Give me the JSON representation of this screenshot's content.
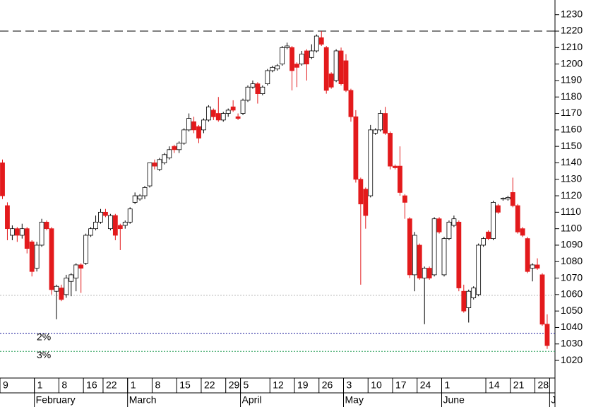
{
  "chart_data": {
    "type": "candlestick",
    "ylim": [
      1009.3,
      1238.9
    ],
    "yticks": [
      1020,
      1030,
      1040,
      1050,
      1060,
      1070,
      1080,
      1090,
      1100,
      1110,
      1120,
      1130,
      1140,
      1150,
      1160,
      1170,
      1180,
      1190,
      1200,
      1210,
      1220,
      1230
    ],
    "up_color": "#ffffff",
    "down_color": "#e31a1c",
    "open": [
      1140,
      1114,
      1096,
      1100,
      1096,
      1100,
      1092,
      1076,
      1090,
      1104,
      1100,
      1062,
      1064,
      1060,
      1068,
      1070,
      1078,
      1079,
      1096,
      1100,
      1104,
      1110,
      1100,
      1108,
      1102,
      1102,
      1104,
      1116,
      1118,
      1120,
      1126,
      1140,
      1136,
      1140,
      1143,
      1150,
      1148,
      1152,
      1160,
      1165,
      1162,
      1160,
      1166,
      1172,
      1170,
      1166,
      1170,
      1174,
      1168,
      1170,
      1178,
      1186,
      1188,
      1182,
      1188,
      1196,
      1197,
      1200,
      1210,
      1210,
      1200,
      1200,
      1208,
      1204,
      1208,
      1216,
      1210,
      1194,
      1190,
      1208,
      1202,
      1184,
      1168,
      1130,
      1124,
      1120,
      1158,
      1160,
      1170,
      1158,
      1138,
      1138,
      1120,
      1106,
      1072,
      1090,
      1070,
      1076,
      1072,
      1106,
      1072,
      1094,
      1102,
      1104,
      1062,
      1052,
      1058,
      1060,
      1090,
      1098,
      1094,
      1114,
      1118,
      1118,
      1122,
      1114,
      1100,
      1094,
      1076,
      1078,
      1072,
      1042
    ],
    "high": [
      1142,
      1116,
      1102,
      1101,
      1103,
      1101,
      1093,
      1092,
      1106,
      1105,
      1101,
      1066,
      1066,
      1072,
      1073,
      1079,
      1079,
      1097,
      1101,
      1108,
      1112,
      1112,
      1109,
      1109,
      1103,
      1105,
      1113,
      1122,
      1121,
      1126,
      1140,
      1142,
      1143,
      1146,
      1150,
      1151,
      1153,
      1161,
      1170,
      1168,
      1163,
      1167,
      1175,
      1173,
      1180,
      1171,
      1173,
      1178,
      1170,
      1179,
      1187,
      1190,
      1189,
      1187,
      1197,
      1199,
      1200,
      1211,
      1213,
      1211,
      1201,
      1208,
      1209,
      1212,
      1218,
      1220,
      1211,
      1195,
      1209,
      1210,
      1206,
      1185,
      1172,
      1131,
      1125,
      1163,
      1161,
      1172,
      1174,
      1159,
      1139,
      1150,
      1121,
      1107,
      1098,
      1091,
      1077,
      1077,
      1107,
      1107,
      1095,
      1105,
      1108,
      1105,
      1066,
      1063,
      1065,
      1091,
      1095,
      1099,
      1117,
      1115,
      1119,
      1120,
      1131,
      1115,
      1101,
      1095,
      1079,
      1082,
      1073,
      1048
    ],
    "low": [
      1118,
      1093,
      1093,
      1092,
      1094,
      1085,
      1071,
      1074,
      1089,
      1099,
      1060,
      1045,
      1056,
      1058,
      1059,
      1062,
      1061,
      1078,
      1095,
      1099,
      1103,
      1107,
      1099,
      1093,
      1087,
      1100,
      1103,
      1115,
      1117,
      1118,
      1125,
      1136,
      1135,
      1139,
      1142,
      1146,
      1146,
      1151,
      1159,
      1158,
      1152,
      1158,
      1165,
      1166,
      1165,
      1165,
      1168,
      1171,
      1166,
      1169,
      1177,
      1185,
      1176,
      1181,
      1187,
      1195,
      1196,
      1199,
      1209,
      1184,
      1186,
      1199,
      1190,
      1203,
      1207,
      1211,
      1182,
      1185,
      1189,
      1187,
      1183,
      1165,
      1128,
      1066,
      1100,
      1119,
      1157,
      1159,
      1157,
      1136,
      1136,
      1120,
      1106,
      1070,
      1062,
      1069,
      1042,
      1069,
      1071,
      1097,
      1071,
      1093,
      1101,
      1062,
      1049,
      1043,
      1057,
      1059,
      1089,
      1093,
      1093,
      1109,
      1117,
      1117,
      1113,
      1097,
      1095,
      1073,
      1068,
      1075,
      1041,
      1027
    ],
    "close": [
      1120,
      1100,
      1100,
      1096,
      1100,
      1088,
      1074,
      1090,
      1104,
      1100,
      1063,
      1065,
      1057,
      1070,
      1072,
      1078,
      1076,
      1096,
      1100,
      1104,
      1110,
      1108,
      1108,
      1096,
      1100,
      1104,
      1112,
      1120,
      1120,
      1125,
      1140,
      1138,
      1142,
      1145,
      1148,
      1148,
      1152,
      1160,
      1167,
      1160,
      1155,
      1166,
      1174,
      1168,
      1166,
      1170,
      1172,
      1172,
      1167,
      1178,
      1186,
      1188,
      1182,
      1186,
      1196,
      1198,
      1199,
      1210,
      1211,
      1196,
      1198,
      1206,
      1200,
      1208,
      1217,
      1212,
      1184,
      1186,
      1208,
      1188,
      1184,
      1168,
      1130,
      1115,
      1108,
      1160,
      1160,
      1170,
      1158,
      1138,
      1137,
      1122,
      1116,
      1072,
      1096,
      1070,
      1076,
      1070,
      1106,
      1098,
      1094,
      1104,
      1106,
      1064,
      1050,
      1062,
      1064,
      1090,
      1094,
      1094,
      1116,
      1110,
      1118.5,
      1119,
      1114,
      1098,
      1096,
      1074,
      1078,
      1076,
      1042,
      1029
    ],
    "day_ticks": [
      {
        "value": 0,
        "label": "9"
      },
      {
        "value": 7,
        "label": "1"
      },
      {
        "value": 12,
        "label": "8"
      },
      {
        "value": 17,
        "label": "16"
      },
      {
        "value": 21,
        "label": "22"
      },
      {
        "value": 26,
        "label": "1"
      },
      {
        "value": 31,
        "label": "8"
      },
      {
        "value": 36,
        "label": "15"
      },
      {
        "value": 41,
        "label": "22"
      },
      {
        "value": 46,
        "label": "29"
      },
      {
        "value": 49,
        "label": "5"
      },
      {
        "value": 55,
        "label": "12"
      },
      {
        "value": 60,
        "label": "19"
      },
      {
        "value": 65,
        "label": "26"
      },
      {
        "value": 70,
        "label": "3"
      },
      {
        "value": 75,
        "label": "10"
      },
      {
        "value": 80,
        "label": "17"
      },
      {
        "value": 85,
        "label": "24"
      },
      {
        "value": 90,
        "label": "1"
      },
      {
        "value": 99,
        "label": "14"
      },
      {
        "value": 104,
        "label": "21"
      },
      {
        "value": 109,
        "label": "28"
      }
    ],
    "month_ticks": [
      {
        "value": 7,
        "label": "February"
      },
      {
        "value": 26,
        "label": "March"
      },
      {
        "value": 49,
        "label": "April"
      },
      {
        "value": 70,
        "label": "May"
      },
      {
        "value": 90,
        "label": "June"
      },
      {
        "value": 112,
        "label": "J"
      }
    ],
    "reference_lines": [
      {
        "value": 1220,
        "color": "#000000",
        "dash": "12,6"
      },
      {
        "value": 1059.5,
        "color": "#bbbbbb",
        "dash": "2,2"
      },
      {
        "value": 1036.5,
        "color": "#1a1a9a",
        "dash": "2,2",
        "label": "2%"
      },
      {
        "value": 1025.5,
        "color": "#2ca05a",
        "dash": "2,2",
        "label": "3%"
      }
    ]
  }
}
